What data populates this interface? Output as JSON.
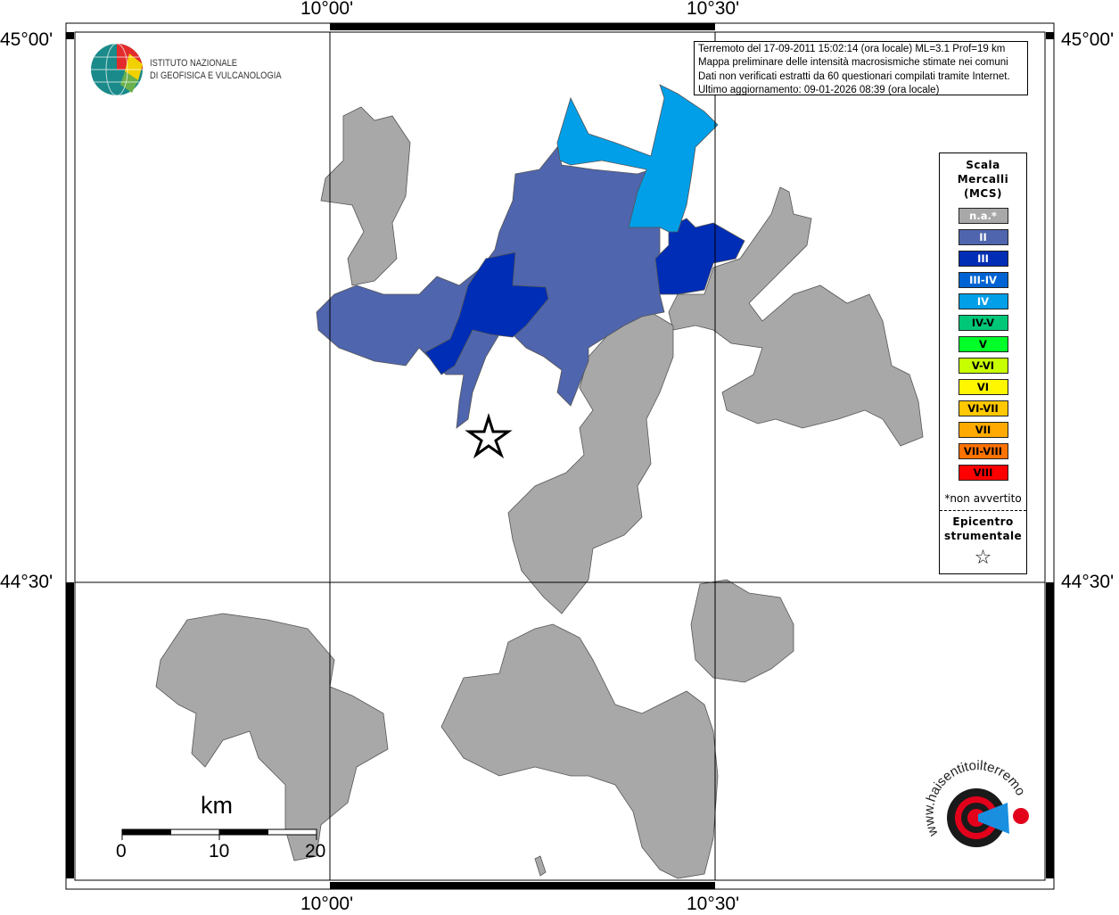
{
  "map": {
    "lon_labels": [
      "10°00'",
      "10°30'"
    ],
    "lat_labels": [
      "45°00'",
      "44°30'"
    ],
    "colors": {
      "na": "#a8a8a8",
      "II": "#4f65ad",
      "III": "#002db5",
      "III-IV": "#0063d3",
      "IV": "#009fe8"
    }
  },
  "institute": {
    "line1": "ISTITUTO NAZIONALE",
    "line2": "DI GEOFISICA E VULCANOLOGIA"
  },
  "info": {
    "line1": "Terremoto del 17-09-2011 15:02:14 (ora locale) ML=3.1 Prof=19 km",
    "line2": "Mappa preliminare delle intensità macrosismiche stimate nei comuni",
    "line3": "Dati non verificati estratti da 60 questionari compilati tramite Internet.",
    "line4": "Ultimo aggiornamento: 09-01-2026 08:39 (ora locale)"
  },
  "legend": {
    "title": [
      "Scala",
      "Mercalli",
      "(MCS)"
    ],
    "items": [
      {
        "label": "n.a.*",
        "color": "#a8a8a8",
        "text": "#ffffff"
      },
      {
        "label": "II",
        "color": "#4f65ad",
        "text": "#ffffff"
      },
      {
        "label": "III",
        "color": "#002db5",
        "text": "#ffffff"
      },
      {
        "label": "III-IV",
        "color": "#0063d3",
        "text": "#ffffff"
      },
      {
        "label": "IV",
        "color": "#009fe8",
        "text": "#ffffff"
      },
      {
        "label": "IV-V",
        "color": "#00c878",
        "text": "#000000"
      },
      {
        "label": "V",
        "color": "#00ff29",
        "text": "#000000"
      },
      {
        "label": "V-VI",
        "color": "#c8ff00",
        "text": "#000000"
      },
      {
        "label": "VI",
        "color": "#fff700",
        "text": "#000000"
      },
      {
        "label": "VI-VII",
        "color": "#ffc800",
        "text": "#000000"
      },
      {
        "label": "VII",
        "color": "#ffaa00",
        "text": "#000000"
      },
      {
        "label": "VII-VIII",
        "color": "#ff7200",
        "text": "#000000"
      },
      {
        "label": "VIII",
        "color": "#ff0000",
        "text": "#000000"
      }
    ],
    "note": "*non avvertito",
    "epicenter": [
      "Epicentro",
      "strumentale"
    ],
    "epicenter_symbol": "☆"
  },
  "scale": {
    "unit": "km",
    "labels": [
      "0",
      "10",
      "20"
    ]
  },
  "logo": {
    "text": "www.haisentitoilterremoto.it"
  }
}
